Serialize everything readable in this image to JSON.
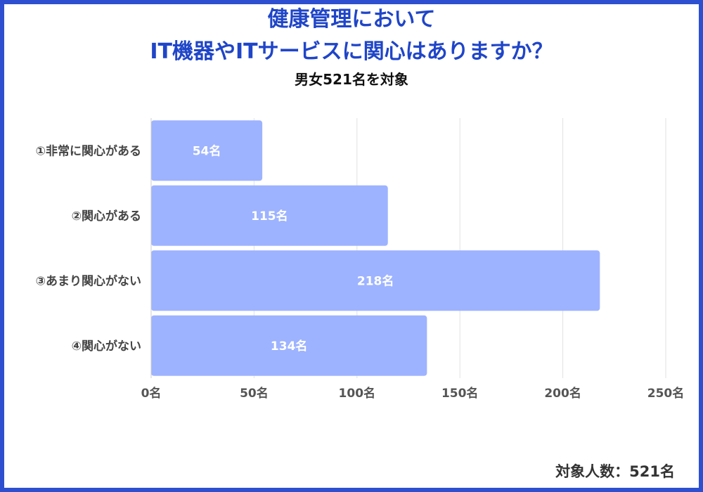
{
  "title_lines": [
    "健康管理において",
    "IT機器やITサービスに関心はありますか？"
  ],
  "subtitle": "男女521名を対象",
  "footer": "対象人数：521名",
  "colors": {
    "frame": "#2d4fd0",
    "title": "#1f45c8",
    "bar": "#9db3ff",
    "grid": "#e2e2e2"
  },
  "chart_data": {
    "type": "bar",
    "orientation": "horizontal",
    "categories": [
      "①非常に関心がある",
      "②関心がある",
      "③あまり関心がない",
      "④関心がない"
    ],
    "values": [
      54,
      115,
      218,
      134
    ],
    "data_labels": [
      "54名",
      "115名",
      "218名",
      "134名"
    ],
    "xlim": [
      0,
      250
    ],
    "ticks": [
      0,
      50,
      100,
      150,
      200,
      250
    ],
    "tick_labels": [
      "0名",
      "50名",
      "100名",
      "150名",
      "200名",
      "250名"
    ],
    "grid": true,
    "legend": "none"
  }
}
